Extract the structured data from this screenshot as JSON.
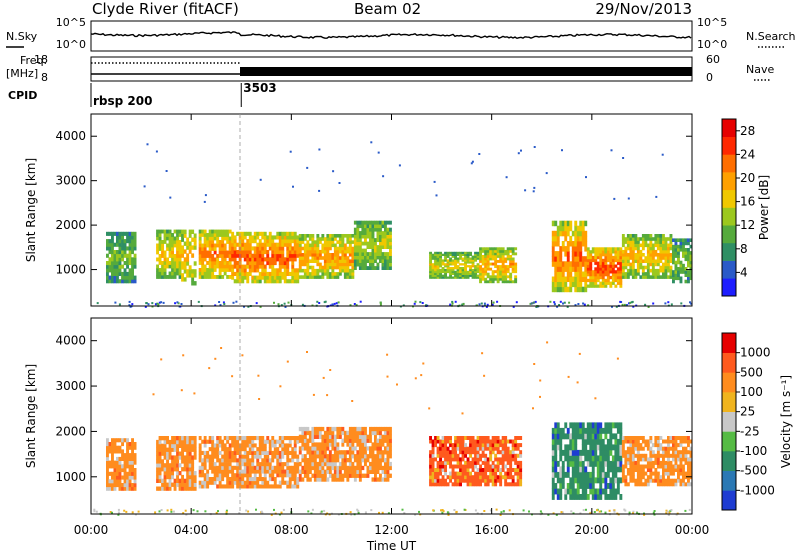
{
  "header": {
    "station": "Clyde River (fitACF)",
    "beam": "Beam 02",
    "date": "29/Nov/2013"
  },
  "top_panels": {
    "nsky_label": "N.Sky",
    "nsky_ticks": [
      "10^5",
      "10^0"
    ],
    "nsearch_label": "N.Search",
    "nsearch_ticks": [
      "10^5",
      "10^0"
    ],
    "freq_label": "Freq.",
    "freq_unit": "[MHz]",
    "freq_ticks": [
      "18",
      "8"
    ],
    "nave_label": "Nave",
    "nave_ticks": [
      "60",
      "0"
    ],
    "cpid_label": "CPID",
    "cpid_entries": [
      {
        "label": "rbsp 200",
        "start_hour": 0
      },
      {
        "label": "3503",
        "start_hour": 6
      }
    ]
  },
  "chart_data": [
    {
      "type": "heatmap",
      "name": "power",
      "ylabel": "Slant Range [km]",
      "yticks": [
        1000,
        2000,
        3000,
        4000
      ],
      "ylim": [
        180,
        4500
      ],
      "xlabel": "Time UT",
      "xticks": [
        "00:00",
        "04:00",
        "08:00",
        "12:00",
        "16:00",
        "20:00",
        "00:00"
      ],
      "xlim_hours": [
        0,
        24
      ],
      "colorbar": {
        "label": "Power [dB]",
        "ticks": [
          "4",
          "8",
          "12",
          "16",
          "20",
          "24",
          "28"
        ],
        "range": [
          0,
          30
        ],
        "colors": [
          "#1e1eff",
          "#2a5ac8",
          "#2f8f64",
          "#55aa3c",
          "#9cc81e",
          "#f0c800",
          "#ffa000",
          "#ff6e00",
          "#ff2800",
          "#e60000"
        ]
      },
      "regions": [
        {
          "t": [
            0.6,
            1.8
          ],
          "r": [
            700,
            1850
          ],
          "level": 12
        },
        {
          "t": [
            2.6,
            3.6
          ],
          "r": [
            800,
            1900
          ],
          "level": 18
        },
        {
          "t": [
            3.6,
            4.2
          ],
          "r": [
            650,
            1900
          ],
          "level": 20
        },
        {
          "t": [
            4.3,
            5.6
          ],
          "r": [
            800,
            1900
          ],
          "level": 24
        },
        {
          "t": [
            5.6,
            8.3
          ],
          "r": [
            700,
            1850
          ],
          "level": 26
        },
        {
          "t": [
            8.3,
            10.5
          ],
          "r": [
            800,
            1800
          ],
          "level": 22
        },
        {
          "t": [
            10.5,
            12.0
          ],
          "r": [
            1000,
            2100
          ],
          "level": 16
        },
        {
          "t": [
            13.5,
            15.5
          ],
          "r": [
            800,
            1400
          ],
          "level": 17
        },
        {
          "t": [
            15.5,
            17.0
          ],
          "r": [
            700,
            1500
          ],
          "level": 21
        },
        {
          "t": [
            18.4,
            19.8
          ],
          "r": [
            500,
            2100
          ],
          "level": 25
        },
        {
          "t": [
            19.8,
            21.2
          ],
          "r": [
            600,
            1500
          ],
          "level": 27
        },
        {
          "t": [
            21.2,
            23.2
          ],
          "r": [
            800,
            1800
          ],
          "level": 20
        },
        {
          "t": [
            23.2,
            24.0
          ],
          "r": [
            700,
            1700
          ],
          "level": 12
        }
      ]
    },
    {
      "type": "heatmap",
      "name": "velocity",
      "ylabel": "Slant Range [km]",
      "yticks": [
        1000,
        2000,
        3000,
        4000
      ],
      "ylim": [
        180,
        4500
      ],
      "xlabel": "Time UT",
      "xticks": [
        "00:00",
        "04:00",
        "08:00",
        "12:00",
        "16:00",
        "20:00",
        "00:00"
      ],
      "xlim_hours": [
        0,
        24
      ],
      "colorbar": {
        "label": "Velocity [m s^-1]",
        "ticks": [
          "1000",
          "500",
          "100",
          "25",
          "-25",
          "-100",
          "-500",
          "-1000"
        ],
        "colors": [
          "#1e3cd2",
          "#2a78b4",
          "#2e8c64",
          "#55bb44",
          "#c8c8c8",
          "#f0b41e",
          "#ff8c1e",
          "#ff5a1e",
          "#e60000"
        ]
      },
      "regions": [
        {
          "t": [
            0.6,
            1.8
          ],
          "r": [
            700,
            1850
          ],
          "class": 6
        },
        {
          "t": [
            2.6,
            4.2
          ],
          "r": [
            700,
            1900
          ],
          "class": 6
        },
        {
          "t": [
            4.3,
            8.3
          ],
          "r": [
            750,
            1900
          ],
          "class": 6
        },
        {
          "t": [
            8.3,
            12.0
          ],
          "r": [
            900,
            2100
          ],
          "class": 6
        },
        {
          "t": [
            13.5,
            17.2
          ],
          "r": [
            800,
            1900
          ],
          "class": 7
        },
        {
          "t": [
            18.4,
            21.2
          ],
          "r": [
            500,
            2200
          ],
          "class": 2
        },
        {
          "t": [
            21.2,
            24.0
          ],
          "r": [
            800,
            1900
          ],
          "class": 6
        }
      ]
    }
  ]
}
